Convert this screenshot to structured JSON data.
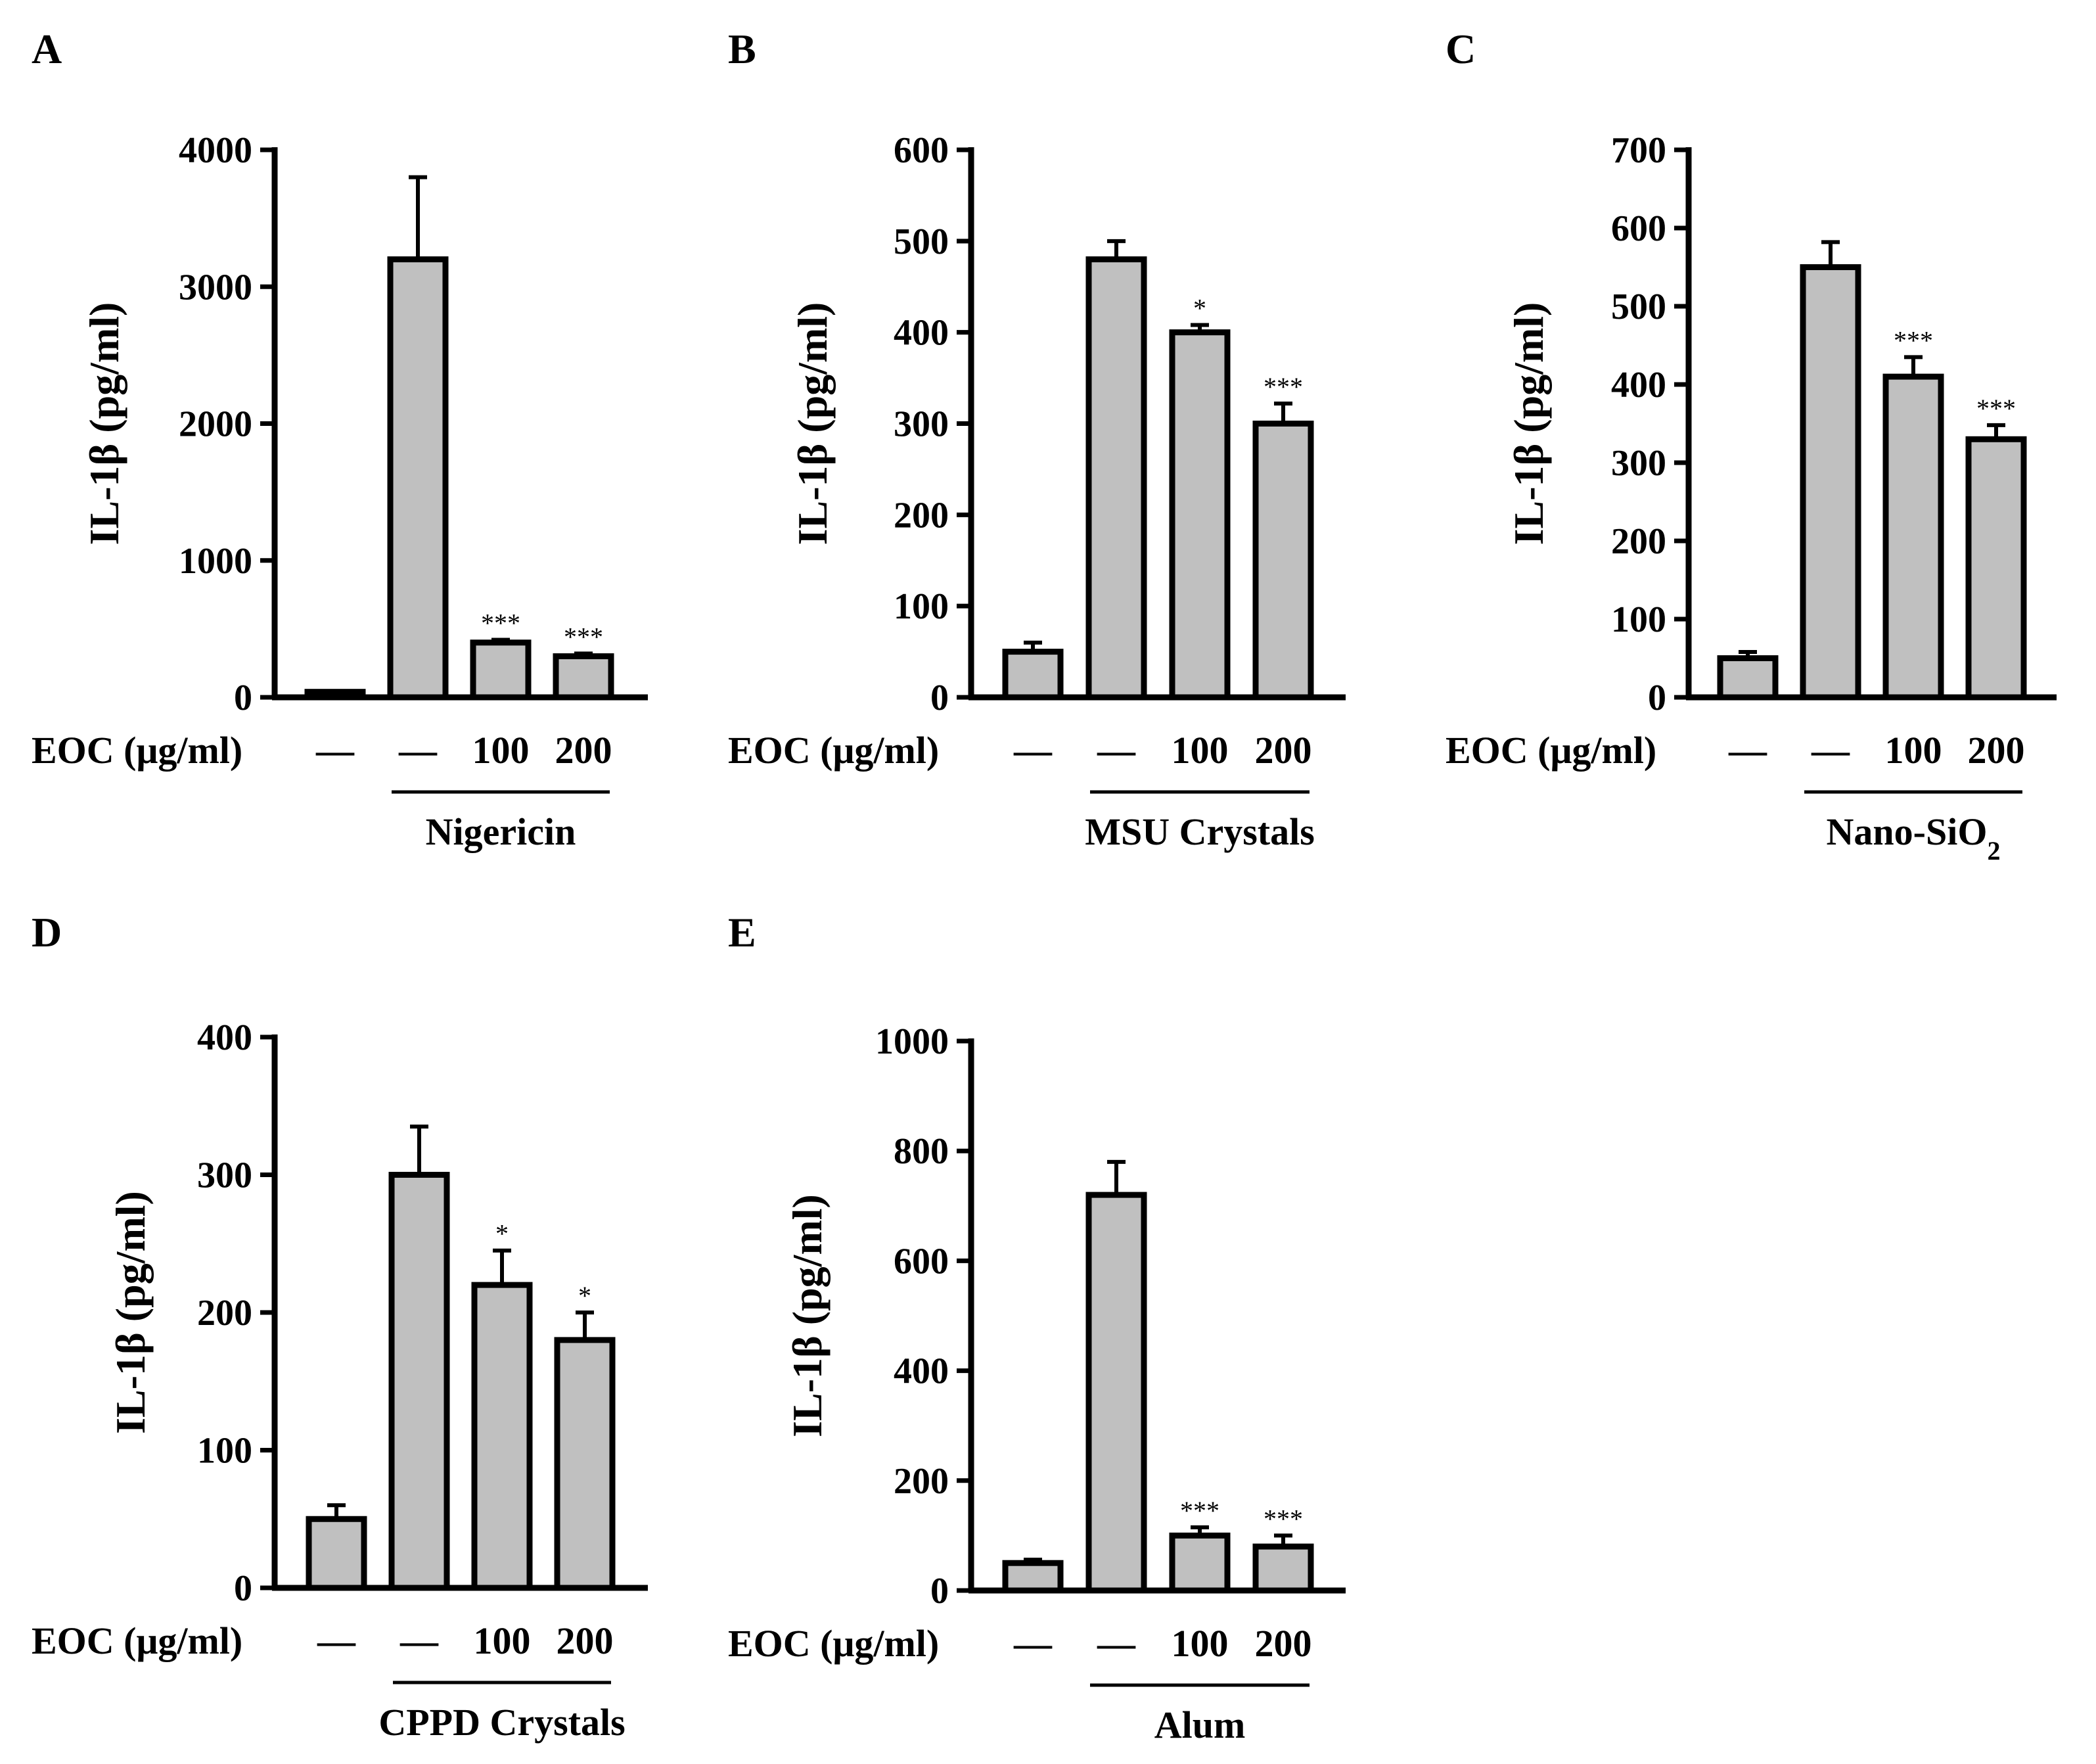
{
  "figure": {
    "bar_color": "#c0c0c0",
    "x_caption": "EOC (μg/ml)",
    "conditions": [
      "—",
      "—",
      "100",
      "200"
    ]
  },
  "chart_data": [
    {
      "type": "bar",
      "panel": "A",
      "ylabel": "IL-1β (pg/ml)",
      "ylim": [
        0,
        4000
      ],
      "yticks": [
        0,
        1000,
        2000,
        3000,
        4000
      ],
      "categories": [
        "—",
        "—",
        "100",
        "200"
      ],
      "values": [
        40,
        3200,
        400,
        300
      ],
      "errors": [
        0,
        600,
        20,
        20
      ],
      "significance": [
        "",
        "",
        "***",
        "***"
      ],
      "group_label": "Nigericin"
    },
    {
      "type": "bar",
      "panel": "B",
      "ylabel": "IL-1β (pg/ml)",
      "ylim": [
        0,
        600
      ],
      "yticks": [
        0,
        100,
        200,
        300,
        400,
        500,
        600
      ],
      "categories": [
        "—",
        "—",
        "100",
        "200"
      ],
      "values": [
        50,
        480,
        400,
        300
      ],
      "errors": [
        10,
        20,
        8,
        22
      ],
      "significance": [
        "",
        "",
        "*",
        "***"
      ],
      "group_label": "MSU Crystals"
    },
    {
      "type": "bar",
      "panel": "C",
      "ylabel": "IL-1β (pg/ml)",
      "ylim": [
        0,
        700
      ],
      "yticks": [
        0,
        100,
        200,
        300,
        400,
        500,
        600,
        700
      ],
      "categories": [
        "—",
        "—",
        "100",
        "200"
      ],
      "values": [
        50,
        550,
        410,
        330
      ],
      "errors": [
        8,
        32,
        25,
        18
      ],
      "significance": [
        "",
        "",
        "***",
        "***"
      ],
      "group_label": "Nano-SiO",
      "group_label_sub": "2"
    },
    {
      "type": "bar",
      "panel": "D",
      "ylabel": "IL-1β (pg/ml)",
      "ylim": [
        0,
        400
      ],
      "yticks": [
        0,
        100,
        200,
        300,
        400
      ],
      "categories": [
        "—",
        "—",
        "100",
        "200"
      ],
      "values": [
        50,
        300,
        220,
        180
      ],
      "errors": [
        10,
        35,
        25,
        20
      ],
      "significance": [
        "",
        "",
        "*",
        "*"
      ],
      "group_label": "CPPD Crystals"
    },
    {
      "type": "bar",
      "panel": "E",
      "ylabel": "IL-1β (pg/ml)",
      "ylim": [
        0,
        1000
      ],
      "yticks": [
        0,
        200,
        400,
        600,
        800,
        1000
      ],
      "categories": [
        "—",
        "—",
        "100",
        "200"
      ],
      "values": [
        50,
        720,
        100,
        80
      ],
      "errors": [
        6,
        60,
        15,
        20
      ],
      "significance": [
        "",
        "",
        "***",
        "***"
      ],
      "group_label": "Alum"
    }
  ]
}
